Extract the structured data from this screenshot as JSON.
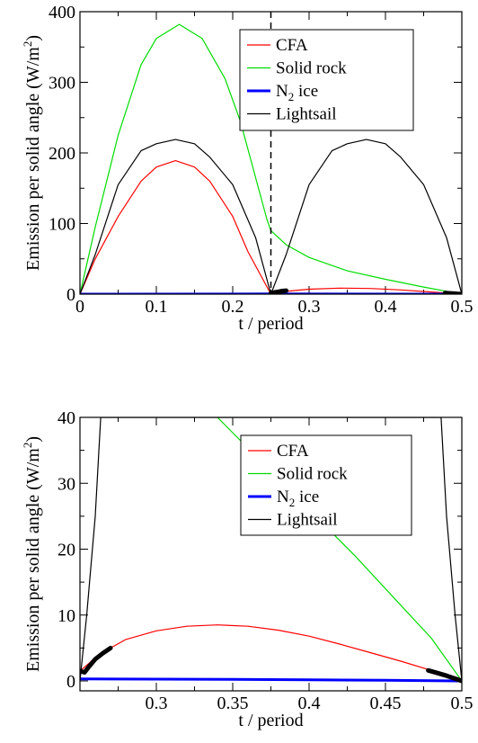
{
  "chart_data": [
    {
      "type": "line",
      "xlabel": "t / period",
      "ylabel": "Emission per solid angle (W/m",
      "ylabel_sup": "2",
      "ylabel_close": ")",
      "xlim": [
        0,
        0.5
      ],
      "ylim": [
        0,
        400
      ],
      "xticks": [
        0,
        0.1,
        0.2,
        0.3,
        0.4,
        0.5
      ],
      "xtick_labels": [
        "0",
        "0.1",
        "0.2",
        "0.3",
        "0.4",
        "0.5"
      ],
      "yticks": [
        0,
        100,
        200,
        300,
        400
      ],
      "ytick_labels": [
        "0",
        "100",
        "200",
        "300",
        "400"
      ],
      "vline_x": 0.25,
      "legend_position": "top-right",
      "series": [
        {
          "name": "CFA",
          "color": "#ff0000",
          "width": 1.2,
          "x": [
            0,
            0.02,
            0.05,
            0.08,
            0.1,
            0.125,
            0.15,
            0.17,
            0.2,
            0.22,
            0.25,
            0.27,
            0.3,
            0.34,
            0.38,
            0.42,
            0.46,
            0.5
          ],
          "y": [
            0,
            50,
            110,
            160,
            180,
            189,
            180,
            160,
            110,
            60,
            0,
            4,
            7,
            8.5,
            8,
            6,
            3,
            0
          ]
        },
        {
          "name": "Solid rock",
          "color": "#00dd00",
          "width": 1.2,
          "x": [
            0,
            0.02,
            0.05,
            0.08,
            0.1,
            0.13,
            0.16,
            0.19,
            0.21,
            0.23,
            0.245,
            0.25,
            0.27,
            0.3,
            0.35,
            0.4,
            0.45,
            0.5
          ],
          "y": [
            0,
            95,
            225,
            325,
            362,
            382,
            362,
            305,
            245,
            165,
            105,
            90,
            70,
            52,
            33,
            21,
            10,
            0
          ]
        },
        {
          "name": "N",
          "name_sub": "2",
          "name_tail": " ice",
          "color": "#0000ff",
          "width": 3,
          "x": [
            0,
            0.25,
            0.5
          ],
          "y": [
            0,
            0.3,
            0
          ]
        },
        {
          "name": "Lightsail",
          "color": "#000000",
          "width": 1.2,
          "x": [
            0,
            0.02,
            0.05,
            0.08,
            0.1,
            0.125,
            0.15,
            0.17,
            0.2,
            0.23,
            0.25,
            0.27,
            0.3,
            0.33,
            0.35,
            0.375,
            0.4,
            0.42,
            0.45,
            0.48,
            0.5
          ],
          "y": [
            0,
            56,
            155,
            203,
            213,
            219,
            213,
            194,
            155,
            80,
            0,
            56,
            155,
            203,
            213,
            219,
            213,
            194,
            155,
            80,
            0
          ]
        }
      ],
      "thick_segments": [
        {
          "color": "#000000",
          "width": 5,
          "x": [
            0.25,
            0.255,
            0.26,
            0.265,
            0.27
          ],
          "y": [
            1.5,
            2.5,
            3.5,
            4.5,
            5
          ]
        },
        {
          "color": "#000000",
          "width": 5,
          "x": [
            0.478,
            0.485,
            0.49,
            0.495,
            0.5
          ],
          "y": [
            1.5,
            1.2,
            0.8,
            0.4,
            0
          ]
        }
      ]
    },
    {
      "type": "line",
      "xlabel": "t / period",
      "ylabel": "Emission per solid angle (W/m",
      "ylabel_sup": "2",
      "ylabel_close": ")",
      "xlim": [
        0.25,
        0.5
      ],
      "ylim": [
        -1.5,
        40
      ],
      "xticks": [
        0.3,
        0.35,
        0.4,
        0.45,
        0.5
      ],
      "xtick_labels": [
        "0.3",
        "0.35",
        "0.4",
        "0.45",
        "0.5"
      ],
      "yticks": [
        0,
        10,
        20,
        30,
        40
      ],
      "ytick_labels": [
        "0",
        "10",
        "20",
        "30",
        "40"
      ],
      "legend_position": "top-right",
      "series": [
        {
          "name": "CFA",
          "color": "#ff0000",
          "width": 1.2,
          "x": [
            0.25,
            0.255,
            0.26,
            0.27,
            0.28,
            0.3,
            0.32,
            0.34,
            0.36,
            0.38,
            0.4,
            0.42,
            0.44,
            0.46,
            0.48,
            0.49,
            0.5
          ],
          "y": [
            1.5,
            2.5,
            3.5,
            5,
            6.3,
            7.6,
            8.3,
            8.5,
            8.3,
            7.7,
            6.8,
            5.6,
            4.3,
            3,
            1.6,
            0.8,
            0
          ]
        },
        {
          "name": "Solid rock",
          "color": "#00dd00",
          "width": 1.2,
          "x": [
            0.34,
            0.37,
            0.4,
            0.43,
            0.46,
            0.48,
            0.5
          ],
          "y": [
            40,
            33,
            26,
            19,
            11.5,
            6.5,
            0
          ]
        },
        {
          "name": "N",
          "name_sub": "2",
          "name_tail": " ice",
          "color": "#0000ff",
          "width": 3,
          "x": [
            0.25,
            0.3,
            0.35,
            0.4,
            0.45,
            0.5
          ],
          "y": [
            0.3,
            0.28,
            0.24,
            0.18,
            0.1,
            0
          ]
        },
        {
          "name": "Lightsail",
          "color": "#000000",
          "width": 1.2,
          "x": [
            0.25,
            0.2544,
            0.26,
            0.2636,
            0.4864,
            0.49,
            0.4956,
            0.5
          ],
          "y": [
            0,
            10,
            25,
            40,
            40,
            25,
            10,
            0
          ]
        }
      ],
      "thick_segments": [
        {
          "color": "#000000",
          "width": 5,
          "x": [
            0.25,
            0.253,
            0.256,
            0.26,
            0.265,
            0.27
          ],
          "y": [
            1.5,
            1.3,
            2.2,
            3.3,
            4.2,
            5
          ]
        },
        {
          "color": "#000000",
          "width": 5,
          "x": [
            0.478,
            0.484,
            0.49,
            0.495,
            0.5
          ],
          "y": [
            1.6,
            1.2,
            0.8,
            0.4,
            0
          ]
        }
      ]
    }
  ]
}
